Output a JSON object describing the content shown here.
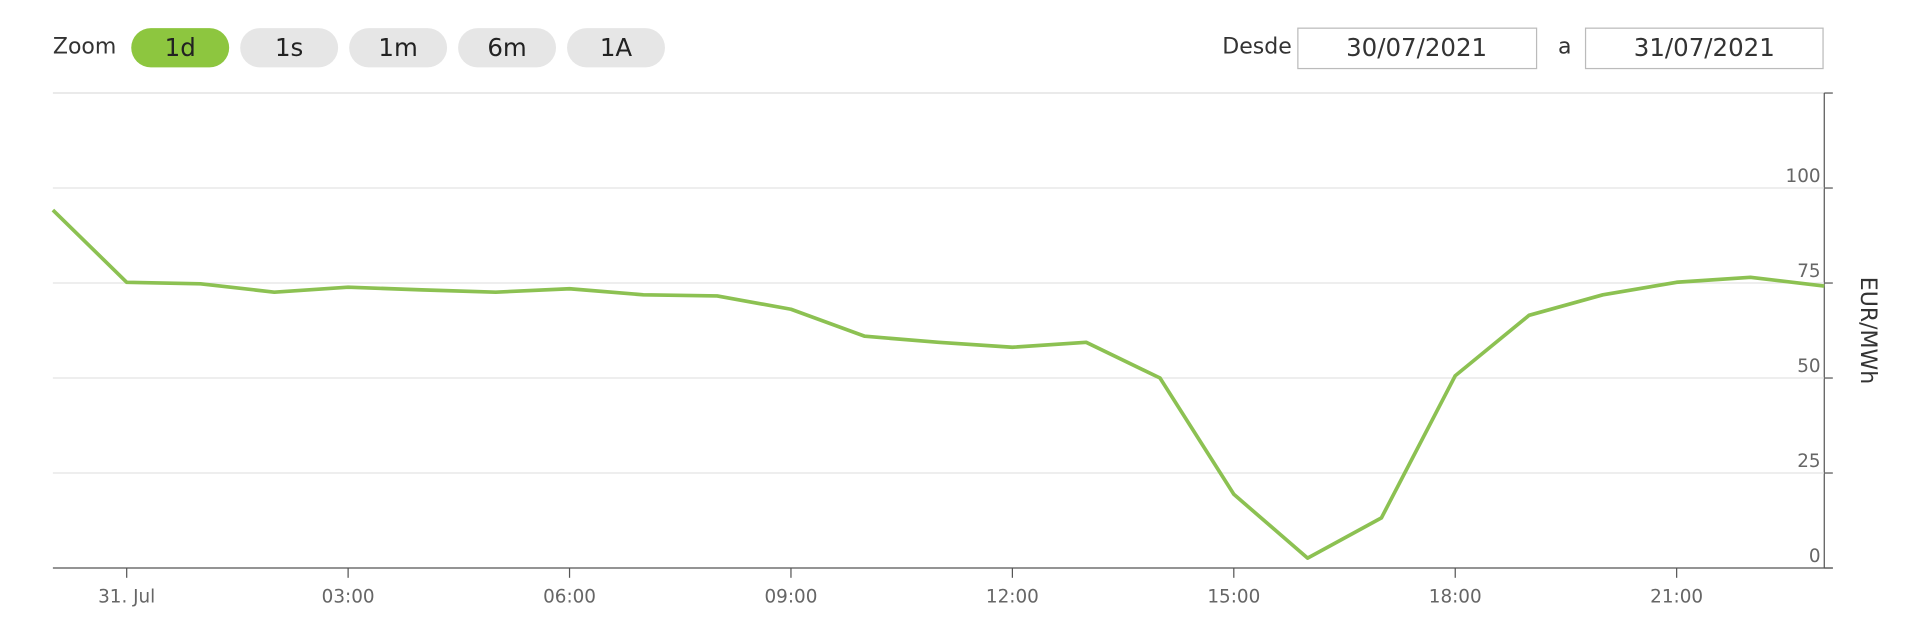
{
  "range_selector": {
    "zoom_label": "Zoom",
    "buttons": [
      "1d",
      "1s",
      "1m",
      "6m",
      "1A"
    ],
    "selected": 0,
    "from_label": "Desde",
    "from": "30/07/2021",
    "to_label": "a",
    "to": "31/07/2021"
  },
  "chart_data": {
    "type": "line",
    "y_label": "EUR/MWh",
    "color": "#8cc152",
    "categories": [
      null,
      "31. Jul",
      null,
      null,
      "03:00",
      null,
      null,
      "06:00",
      null,
      null,
      "09:00",
      null,
      null,
      "12:00",
      null,
      null,
      "15:00",
      null,
      null,
      "18:00",
      null,
      null,
      "21:00",
      null,
      null
    ],
    "values": [
      94.2,
      75.2,
      74.8,
      72.6,
      73.9,
      73.2,
      72.6,
      73.5,
      71.9,
      71.6,
      68.1,
      61.0,
      59.4,
      58.1,
      59.4,
      50.0,
      19.4,
      2.6,
      13.2,
      50.6,
      66.5,
      71.9,
      75.2,
      76.5,
      74.2
    ],
    "ylim": [
      0,
      125
    ],
    "yticks": [
      0,
      25,
      50,
      75,
      100
    ],
    "grid": true
  }
}
